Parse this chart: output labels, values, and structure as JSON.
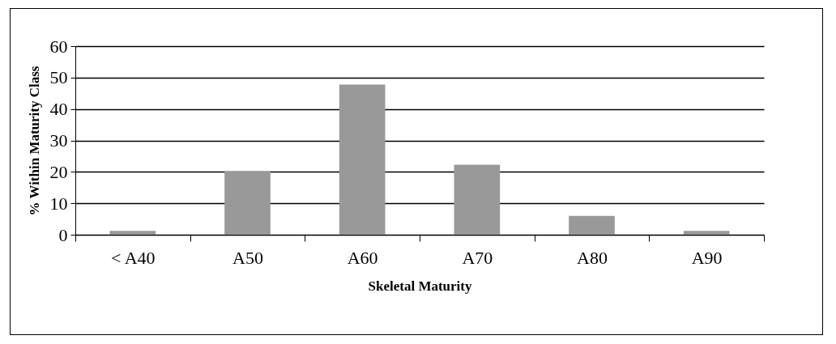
{
  "chart_data": {
    "type": "bar",
    "xlabel": "Skeletal Maturity",
    "ylabel": "% Within Maturity Class",
    "categories": [
      "< A40",
      "A50",
      "A60",
      "A70",
      "A80",
      "A90"
    ],
    "values": [
      1.2,
      20.2,
      47.8,
      22.3,
      6.0,
      1.2
    ],
    "color": "#999999",
    "ylim": [
      0,
      60
    ],
    "yticks": [
      0,
      10,
      20,
      30,
      40,
      50,
      60
    ],
    "grid": "y",
    "legend": false
  }
}
